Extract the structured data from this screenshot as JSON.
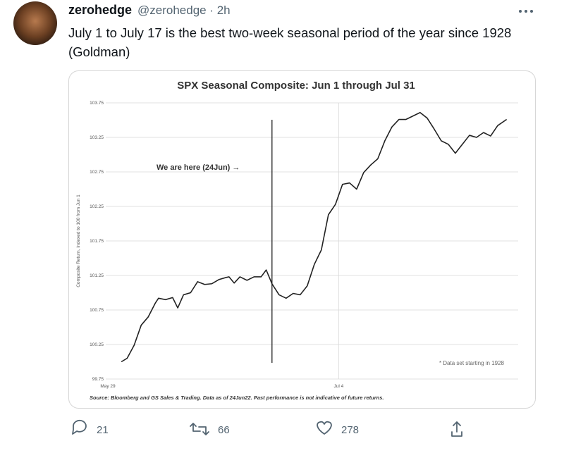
{
  "tweet": {
    "author": "zerohedge",
    "meta": "@zerohedge · 2h",
    "text": "July 1 to July 17 is the best two-week seasonal period of the year since 1928 (Goldman)",
    "replies": "21",
    "retweets": "66",
    "likes": "278"
  },
  "chart_data": {
    "type": "line",
    "title": "SPX Seasonal Composite: Jun 1 through Jul 31",
    "y_label": "Composite Return, Indexed to 100 from Jun 1",
    "annotation": "We are here (24Jun) →",
    "marker_x": 25.6,
    "note": "* Data set starting in 1928",
    "source": "Source: Bloomberg and GS Sales & Trading. Data as of 24Jun22. Past performance is not indicative of future returns.",
    "color": "#222222",
    "xlim": [
      0,
      64
    ],
    "xticks": [
      {
        "value": 0,
        "label": "May 29"
      },
      {
        "value": 36,
        "label": "Jul 4"
      }
    ],
    "ylim": [
      99.75,
      103.75
    ],
    "yticks": [
      103.75,
      103.25,
      102.75,
      102.25,
      101.75,
      101.25,
      100.75,
      100.25,
      99.75
    ],
    "grid": true,
    "x": [
      2.1,
      3.0,
      4.1,
      5.2,
      6.3,
      7.4,
      7.9,
      9.0,
      10.1,
      10.9,
      11.8,
      12.9,
      14.0,
      15.1,
      16.2,
      17.3,
      18.4,
      18.9,
      19.7,
      20.6,
      21.7,
      22.8,
      23.9,
      24.7,
      25.6,
      26.7,
      27.8,
      28.9,
      30.0,
      31.1,
      32.2,
      33.3,
      34.4,
      35.5,
      36.6,
      37.7,
      38.8,
      39.9,
      41.0,
      42.1,
      43.2,
      44.3,
      45.4,
      46.5,
      47.6,
      48.7,
      49.8,
      50.9,
      52.0,
      53.1,
      54.2,
      55.3,
      56.4,
      57.5,
      58.6,
      59.7,
      60.8,
      62.2
    ],
    "values": [
      100.0,
      100.05,
      100.24,
      100.53,
      100.65,
      100.85,
      100.92,
      100.9,
      100.93,
      100.78,
      100.97,
      101.0,
      101.16,
      101.12,
      101.13,
      101.19,
      101.22,
      101.23,
      101.14,
      101.23,
      101.18,
      101.23,
      101.23,
      101.33,
      101.13,
      100.97,
      100.92,
      100.99,
      100.97,
      101.1,
      101.41,
      101.62,
      102.13,
      102.28,
      102.57,
      102.59,
      102.5,
      102.74,
      102.85,
      102.94,
      103.2,
      103.4,
      103.51,
      103.51,
      103.56,
      103.61,
      103.53,
      103.37,
      103.2,
      103.15,
      103.02,
      103.15,
      103.28,
      103.25,
      103.32,
      103.27,
      103.42,
      103.51
    ]
  }
}
